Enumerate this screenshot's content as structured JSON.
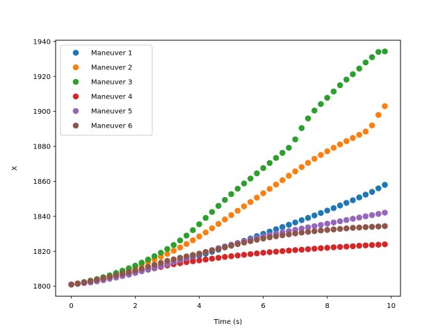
{
  "chart_data": {
    "type": "scatter",
    "title": "",
    "xlabel": "Time (s)",
    "ylabel": "X",
    "xlim": [
      -0.49,
      10.29
    ],
    "ylim": [
      1794.3,
      1940.7
    ],
    "xticks": [
      0,
      2,
      4,
      6,
      8,
      10
    ],
    "yticks": [
      1800,
      1820,
      1840,
      1860,
      1880,
      1900,
      1920,
      1940
    ],
    "grid": false,
    "legend_position": "top-left",
    "x": [
      0.0,
      0.2,
      0.4,
      0.6,
      0.8,
      1.0,
      1.2,
      1.4,
      1.6,
      1.8,
      2.0,
      2.2,
      2.4,
      2.6,
      2.8,
      3.0,
      3.2,
      3.4,
      3.6,
      3.8,
      4.0,
      4.2,
      4.4,
      4.6,
      4.8,
      5.0,
      5.2,
      5.4,
      5.6,
      5.8,
      6.0,
      6.2,
      6.4,
      6.6,
      6.8,
      7.0,
      7.2,
      7.4,
      7.6,
      7.8,
      8.0,
      8.2,
      8.4,
      8.6,
      8.8,
      9.0,
      9.2,
      9.4,
      9.6,
      9.8
    ],
    "series": [
      {
        "name": "Maneuver 1",
        "color": "#1f77b4",
        "values": [
          1801.0,
          1801.4,
          1802.0,
          1802.6,
          1803.2,
          1804.0,
          1804.8,
          1805.6,
          1806.4,
          1807.2,
          1808.0,
          1808.8,
          1809.7,
          1810.6,
          1811.5,
          1812.4,
          1813.3,
          1814.3,
          1815.3,
          1816.4,
          1817.5,
          1818.6,
          1819.7,
          1820.9,
          1822.2,
          1823.4,
          1824.7,
          1826.0,
          1827.3,
          1828.7,
          1830.0,
          1831.3,
          1832.6,
          1833.9,
          1835.2,
          1836.5,
          1837.8,
          1839.1,
          1840.5,
          1841.9,
          1843.3,
          1844.7,
          1846.2,
          1847.7,
          1849.2,
          1850.8,
          1852.4,
          1854.0,
          1856.0,
          1858.0
        ]
      },
      {
        "name": "Maneuver 2",
        "color": "#ff7f0e",
        "values": [
          1801.0,
          1801.6,
          1802.4,
          1803.2,
          1804.0,
          1805.0,
          1806.0,
          1807.2,
          1808.4,
          1809.7,
          1811.0,
          1812.4,
          1813.8,
          1815.3,
          1816.9,
          1818.5,
          1820.3,
          1822.2,
          1824.2,
          1826.3,
          1828.5,
          1830.8,
          1833.2,
          1835.7,
          1838.2,
          1840.7,
          1843.2,
          1845.7,
          1848.2,
          1850.7,
          1853.2,
          1855.7,
          1858.2,
          1860.7,
          1863.2,
          1865.7,
          1868.2,
          1870.6,
          1872.9,
          1875.1,
          1877.2,
          1879.2,
          1881.1,
          1883.0,
          1884.8,
          1886.6,
          1888.5,
          1892.0,
          1898.0,
          1903.0
        ]
      },
      {
        "name": "Maneuver 3",
        "color": "#2ca02c",
        "values": [
          1801.0,
          1801.6,
          1802.4,
          1803.2,
          1804.1,
          1805.2,
          1806.3,
          1807.6,
          1808.9,
          1810.3,
          1811.8,
          1813.5,
          1815.3,
          1817.2,
          1819.2,
          1821.3,
          1823.6,
          1826.2,
          1829.0,
          1832.1,
          1835.5,
          1839.1,
          1842.5,
          1846.0,
          1849.4,
          1852.7,
          1855.8,
          1858.8,
          1861.6,
          1864.6,
          1867.6,
          1870.5,
          1873.4,
          1876.3,
          1879.2,
          1884.0,
          1890.5,
          1896.0,
          1900.5,
          1904.2,
          1907.8,
          1911.4,
          1915.0,
          1918.2,
          1921.3,
          1924.5,
          1928.0,
          1931.0,
          1934.0,
          1934.3
        ]
      },
      {
        "name": "Maneuver 4",
        "color": "#d62728",
        "values": [
          1801.0,
          1801.5,
          1802.1,
          1802.8,
          1803.5,
          1804.2,
          1804.9,
          1805.6,
          1806.4,
          1807.1,
          1807.9,
          1808.7,
          1809.5,
          1810.3,
          1811.1,
          1811.9,
          1812.6,
          1813.2,
          1813.8,
          1814.3,
          1814.8,
          1815.3,
          1815.8,
          1816.3,
          1816.8,
          1817.2,
          1817.6,
          1818.0,
          1818.4,
          1818.8,
          1819.2,
          1819.5,
          1819.8,
          1820.1,
          1820.4,
          1820.7,
          1820.9,
          1821.2,
          1821.5,
          1821.8,
          1822.0,
          1822.3,
          1822.5,
          1822.7,
          1822.9,
          1823.2,
          1823.4,
          1823.6,
          1823.8,
          1824.0
        ]
      },
      {
        "name": "Maneuver 5",
        "color": "#9467bd",
        "values": [
          1801.0,
          1801.4,
          1801.8,
          1802.2,
          1802.8,
          1803.5,
          1804.3,
          1805.0,
          1805.8,
          1806.6,
          1807.6,
          1808.6,
          1809.6,
          1810.6,
          1811.6,
          1812.6,
          1813.8,
          1815.0,
          1816.2,
          1817.4,
          1818.5,
          1819.6,
          1820.7,
          1821.8,
          1822.8,
          1823.8,
          1824.8,
          1825.8,
          1826.7,
          1827.6,
          1828.5,
          1829.3,
          1830.1,
          1830.9,
          1831.6,
          1832.3,
          1833.0,
          1833.7,
          1834.4,
          1835.1,
          1835.8,
          1836.5,
          1837.2,
          1837.9,
          1838.6,
          1839.3,
          1840.0,
          1840.7,
          1841.4,
          1842.1
        ]
      },
      {
        "name": "Maneuver 6",
        "color": "#8c564b",
        "values": [
          1801.0,
          1801.5,
          1802.2,
          1803.0,
          1803.8,
          1804.6,
          1805.4,
          1806.3,
          1807.2,
          1808.1,
          1809.1,
          1810.1,
          1811.2,
          1812.3,
          1813.4,
          1814.5,
          1815.4,
          1816.3,
          1817.1,
          1817.9,
          1818.7,
          1819.6,
          1820.5,
          1821.4,
          1822.3,
          1823.2,
          1824.1,
          1825.0,
          1825.8,
          1826.6,
          1827.3,
          1828.0,
          1828.6,
          1829.2,
          1829.7,
          1830.2,
          1830.7,
          1831.1,
          1831.5,
          1831.9,
          1832.2,
          1832.5,
          1832.8,
          1833.1,
          1833.4,
          1833.6,
          1833.8,
          1834.0,
          1834.2,
          1834.4
        ]
      }
    ]
  }
}
